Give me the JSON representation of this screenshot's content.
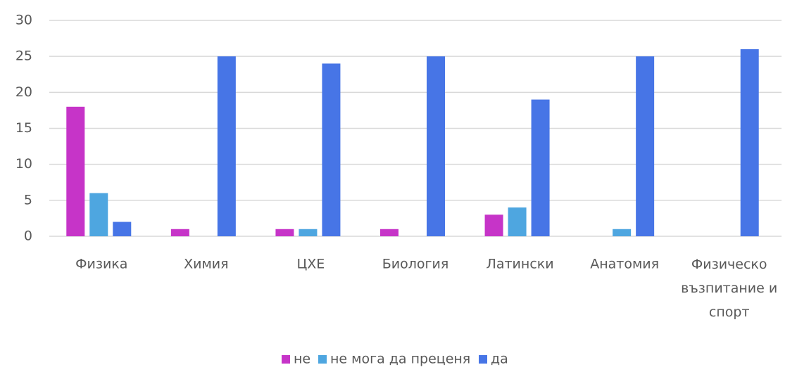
{
  "chart_data": {
    "type": "bar",
    "categories": [
      "Физика",
      "Химия",
      "ЦХЕ",
      "Биология",
      "Латински",
      "Анатомия",
      "Физическо възпитание и спорт"
    ],
    "series": [
      {
        "name": "не",
        "color": "#c634c8",
        "values": [
          18,
          1,
          1,
          1,
          3,
          0,
          0
        ]
      },
      {
        "name": "не мога да преценя",
        "color": "#4ea6e0",
        "values": [
          6,
          0,
          1,
          0,
          4,
          1,
          0
        ]
      },
      {
        "name": "да",
        "color": "#4775e6",
        "values": [
          2,
          25,
          24,
          25,
          19,
          25,
          26
        ]
      }
    ],
    "ylim": [
      0,
      30
    ],
    "yticks": [
      0,
      5,
      10,
      15,
      20,
      25,
      30
    ],
    "grid": true,
    "legend": "bottom"
  }
}
